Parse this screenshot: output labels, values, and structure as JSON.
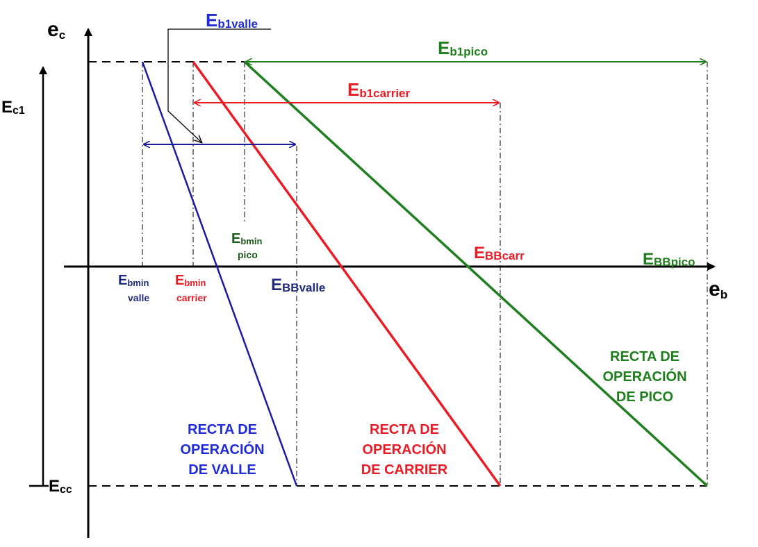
{
  "colors": {
    "black": "#000000",
    "valle_blue": "#1b1b9e",
    "valle_label_blue": "#1f2bd6",
    "valle_lower_blue": "#202a7e",
    "carrier_red": "#e81c24",
    "pico_green": "#1f7f1f",
    "pico_dark_green": "#1c5a1c"
  },
  "axes": {
    "ec": {
      "main": "e",
      "sub": "c"
    },
    "eb": {
      "main": "e",
      "sub": "b"
    },
    "ec1": {
      "main": "E",
      "sub": "c1"
    },
    "ecc": {
      "main": "E",
      "sub": "cc"
    }
  },
  "dimensions": {
    "eb1valle": {
      "main": "E",
      "sub": "b1valle"
    },
    "eb1pico": {
      "main": "E",
      "sub": "b1pico"
    },
    "eb1carrier": {
      "main": "E",
      "sub": "b1carrier"
    }
  },
  "points": {
    "ebmin_valle": {
      "main": "E",
      "sub": "bmin",
      "second": "valle"
    },
    "ebmin_carrier": {
      "main": "E",
      "sub": "bmin",
      "second": "carrier"
    },
    "ebmin_pico": {
      "main": "E",
      "sub": "bmin",
      "second": "pico"
    },
    "ebb_valle": {
      "main": "E",
      "sub": "BBvalle"
    },
    "ebb_carr": {
      "main": "E",
      "sub": "BBcarr"
    },
    "ebb_pico": {
      "main": "E",
      "sub": "BBpico"
    }
  },
  "lines": {
    "valle": [
      "RECTA DE",
      "OPERACIÓN",
      "DE VALLE"
    ],
    "carrier": [
      "RECTA DE",
      "OPERACIÓN",
      "DE CARRIER"
    ],
    "pico": [
      "RECTA DE",
      "OPERACIÓN",
      "DE PICO"
    ]
  }
}
